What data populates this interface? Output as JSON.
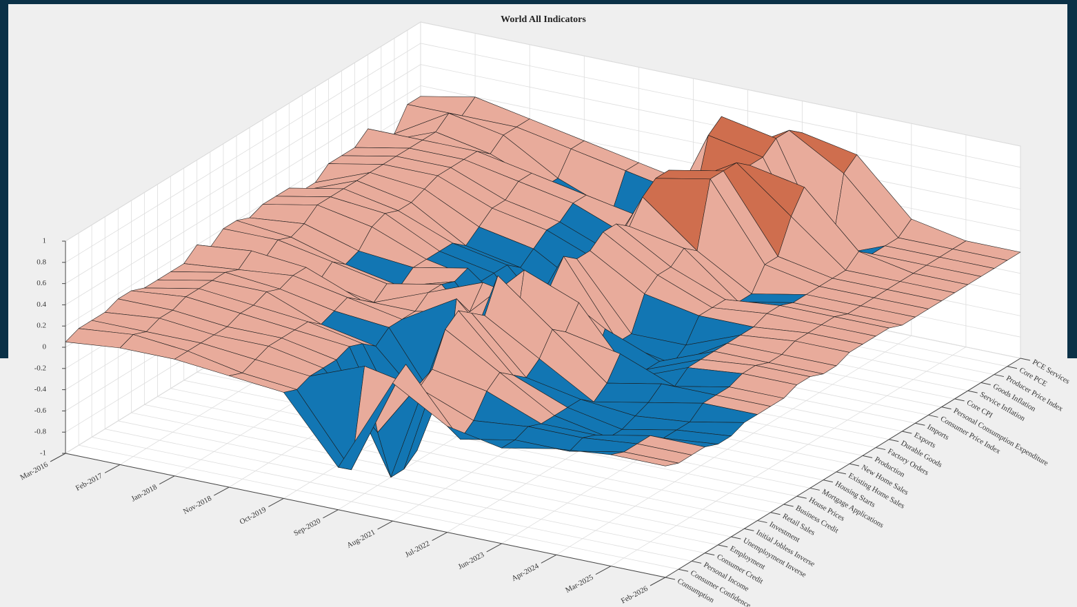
{
  "chart_data": {
    "type": "surface",
    "title": "World All Indicators",
    "x": [
      "Mar-2016",
      "Feb-2017",
      "Jan-2018",
      "Nov-2018",
      "Oct-2019",
      "Sep-2020",
      "Aug-2021",
      "Jul-2022",
      "Jun-2023",
      "Apr-2024",
      "Mar-2025",
      "Feb-2026"
    ],
    "y_categories": [
      "Consumption",
      "Consumer Confidence",
      "Personal Income",
      "Consumer Credit",
      "Employment",
      "Unemployment Inverse",
      "Initial Jobless Inverse",
      "Investment",
      "Retail Sales",
      "Business Credit",
      "House Prices",
      "Mortgage Applications",
      "Housing Starts",
      "Existing Home Sales",
      "New Home Sales",
      "Production",
      "Factory Orders",
      "Durable Goods",
      "Exports",
      "Imports",
      "Consumer Price Index",
      "Personal Consumption Expenditure",
      "Core CPI",
      "Service Inflation",
      "Goods Inflation",
      "Producer Price Index",
      "Core PCE",
      "PCE Services"
    ],
    "z": [
      [
        0.05,
        0.1,
        0.1,
        0.05,
        0.0,
        -0.6,
        0.3,
        0.0,
        -0.1,
        0.0,
        0.05,
        0.05
      ],
      [
        0.1,
        0.15,
        0.1,
        0.0,
        -0.05,
        -0.7,
        0.4,
        -0.2,
        -0.1,
        -0.1,
        0.0,
        0.0
      ],
      [
        0.1,
        0.1,
        0.1,
        0.05,
        0.0,
        0.2,
        0.1,
        -0.1,
        -0.05,
        -0.05,
        0.0,
        0.0
      ],
      [
        0.1,
        0.15,
        0.1,
        0.1,
        0.0,
        -0.5,
        0.2,
        0.1,
        -0.1,
        -0.1,
        0.0,
        0.0
      ],
      [
        0.15,
        0.15,
        0.1,
        0.1,
        0.0,
        -1.0,
        0.5,
        0.2,
        -0.1,
        -0.2,
        -0.1,
        -0.05
      ],
      [
        0.15,
        0.2,
        0.15,
        0.1,
        0.05,
        -1.0,
        0.6,
        0.1,
        -0.1,
        -0.2,
        -0.1,
        -0.05
      ],
      [
        0.1,
        0.2,
        0.15,
        0.1,
        0.0,
        -0.9,
        0.5,
        0.0,
        -0.1,
        -0.15,
        -0.1,
        0.0
      ],
      [
        0.1,
        0.2,
        0.2,
        0.0,
        -0.1,
        -0.6,
        0.4,
        0.1,
        -0.2,
        -0.1,
        0.0,
        0.0
      ],
      [
        0.1,
        0.2,
        0.15,
        0.05,
        0.0,
        -0.7,
        0.7,
        0.3,
        -0.1,
        0.0,
        0.0,
        0.0
      ],
      [
        0.1,
        0.15,
        0.2,
        0.1,
        0.0,
        0.3,
        -0.2,
        0.2,
        0.1,
        -0.1,
        0.0,
        0.0
      ],
      [
        0.2,
        0.25,
        0.2,
        0.0,
        0.0,
        0.1,
        0.6,
        0.4,
        -0.2,
        0.0,
        0.05,
        0.05
      ],
      [
        0.1,
        0.1,
        0.0,
        -0.1,
        0.1,
        0.3,
        0.2,
        -0.3,
        -0.2,
        0.0,
        0.05,
        0.05
      ],
      [
        0.2,
        0.2,
        0.1,
        0.0,
        0.1,
        -0.4,
        0.3,
        0.0,
        -0.2,
        0.0,
        0.0,
        0.0
      ],
      [
        0.2,
        0.15,
        0.0,
        -0.1,
        0.05,
        -0.5,
        0.5,
        -0.2,
        -0.3,
        0.0,
        0.0,
        0.0
      ],
      [
        0.15,
        0.2,
        0.05,
        0.0,
        0.1,
        -0.3,
        0.4,
        -0.2,
        -0.2,
        0.0,
        0.05,
        0.05
      ],
      [
        0.2,
        0.3,
        0.2,
        0.0,
        -0.1,
        -0.8,
        0.4,
        0.1,
        0.0,
        0.0,
        0.05,
        0.05
      ],
      [
        0.2,
        0.3,
        0.25,
        0.0,
        -0.1,
        -0.7,
        0.5,
        0.2,
        0.0,
        0.05,
        0.05,
        0.05
      ],
      [
        0.2,
        0.3,
        0.2,
        0.0,
        -0.1,
        -0.6,
        0.5,
        0.2,
        0.0,
        0.05,
        0.05,
        0.05
      ],
      [
        0.1,
        0.3,
        0.2,
        -0.1,
        -0.2,
        -0.5,
        0.4,
        0.3,
        -0.1,
        0.0,
        0.0,
        0.0
      ],
      [
        0.1,
        0.3,
        0.25,
        0.0,
        -0.1,
        -0.4,
        0.6,
        0.2,
        -0.1,
        0.0,
        0.0,
        0.0
      ],
      [
        0.2,
        0.3,
        0.3,
        0.1,
        0.0,
        -0.2,
        0.7,
        0.8,
        0.1,
        0.0,
        0.0,
        0.0
      ],
      [
        0.2,
        0.3,
        0.3,
        0.1,
        0.0,
        -0.2,
        0.7,
        0.8,
        0.1,
        0.0,
        0.0,
        0.0
      ],
      [
        0.2,
        0.3,
        0.3,
        0.2,
        0.1,
        -0.1,
        0.5,
        0.8,
        0.4,
        0.0,
        0.0,
        0.0
      ],
      [
        0.3,
        0.3,
        0.3,
        0.2,
        0.1,
        0.0,
        0.3,
        0.7,
        0.6,
        0.1,
        0.0,
        0.0
      ],
      [
        0.1,
        0.3,
        0.2,
        0.0,
        -0.1,
        -0.3,
        0.8,
        0.7,
        -0.2,
        0.0,
        0.0,
        0.0
      ],
      [
        0.1,
        0.4,
        0.3,
        0.0,
        -0.2,
        -0.4,
        0.9,
        0.8,
        -0.2,
        0.0,
        0.0,
        0.0
      ],
      [
        0.3,
        0.3,
        0.3,
        0.2,
        0.1,
        0.0,
        0.5,
        0.8,
        0.5,
        0.0,
        0.0,
        0.0
      ],
      [
        0.3,
        0.4,
        0.3,
        0.2,
        0.1,
        0.0,
        0.3,
        0.7,
        0.6,
        0.1,
        0.0,
        0.0
      ]
    ],
    "zlim": [
      -1,
      1
    ],
    "zticks": [
      -1,
      -0.8,
      -0.6,
      -0.4,
      -0.2,
      0,
      0.2,
      0.4,
      0.6,
      0.8,
      1
    ],
    "grid": true,
    "colormap": [
      "#1276b3",
      "#e8ab9b",
      "#cf6e4e"
    ]
  }
}
